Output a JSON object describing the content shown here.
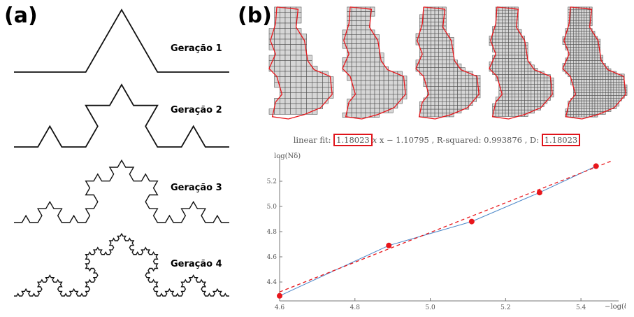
{
  "panel_a": {
    "label": "(a)",
    "generations": [
      {
        "label": "Geração 1",
        "level": 1
      },
      {
        "label": "Geração 2",
        "level": 2
      },
      {
        "label": "Geração 3",
        "level": 3
      },
      {
        "label": "Geração 4",
        "level": 4
      }
    ]
  },
  "panel_b": {
    "label": "(b)",
    "box_count_panels": 5,
    "fit": {
      "prefix": "linear fit: ",
      "slope": "1.18023",
      "mid": " x − 1.10795 , R-squared: 0.993876 , D: ",
      "dimension": "1.18023",
      "x_var": "x"
    }
  },
  "chart_data": {
    "type": "scatter",
    "xlabel": "−log(δ)",
    "ylabel": "log(Nδ)",
    "xlim": [
      4.6,
      5.5
    ],
    "ylim": [
      4.25,
      5.4
    ],
    "xticks": [
      "4.6",
      "4.8",
      "5.0",
      "5.2",
      "5.4"
    ],
    "yticks": [
      "4.4",
      "4.6",
      "4.8",
      "5.0",
      "5.2"
    ],
    "series": [
      {
        "values": [
          [
            4.6,
            4.29
          ],
          [
            4.89,
            4.69
          ],
          [
            5.11,
            4.88
          ],
          [
            5.29,
            5.11
          ],
          [
            5.44,
            5.32
          ]
        ]
      }
    ],
    "fit_line": {
      "slope": 1.18023,
      "intercept": -1.10795
    },
    "colors": {
      "points": "#e8161b",
      "fit": "#e8161b",
      "connect": "#4a86c8",
      "highlight": "#e0141b"
    }
  }
}
